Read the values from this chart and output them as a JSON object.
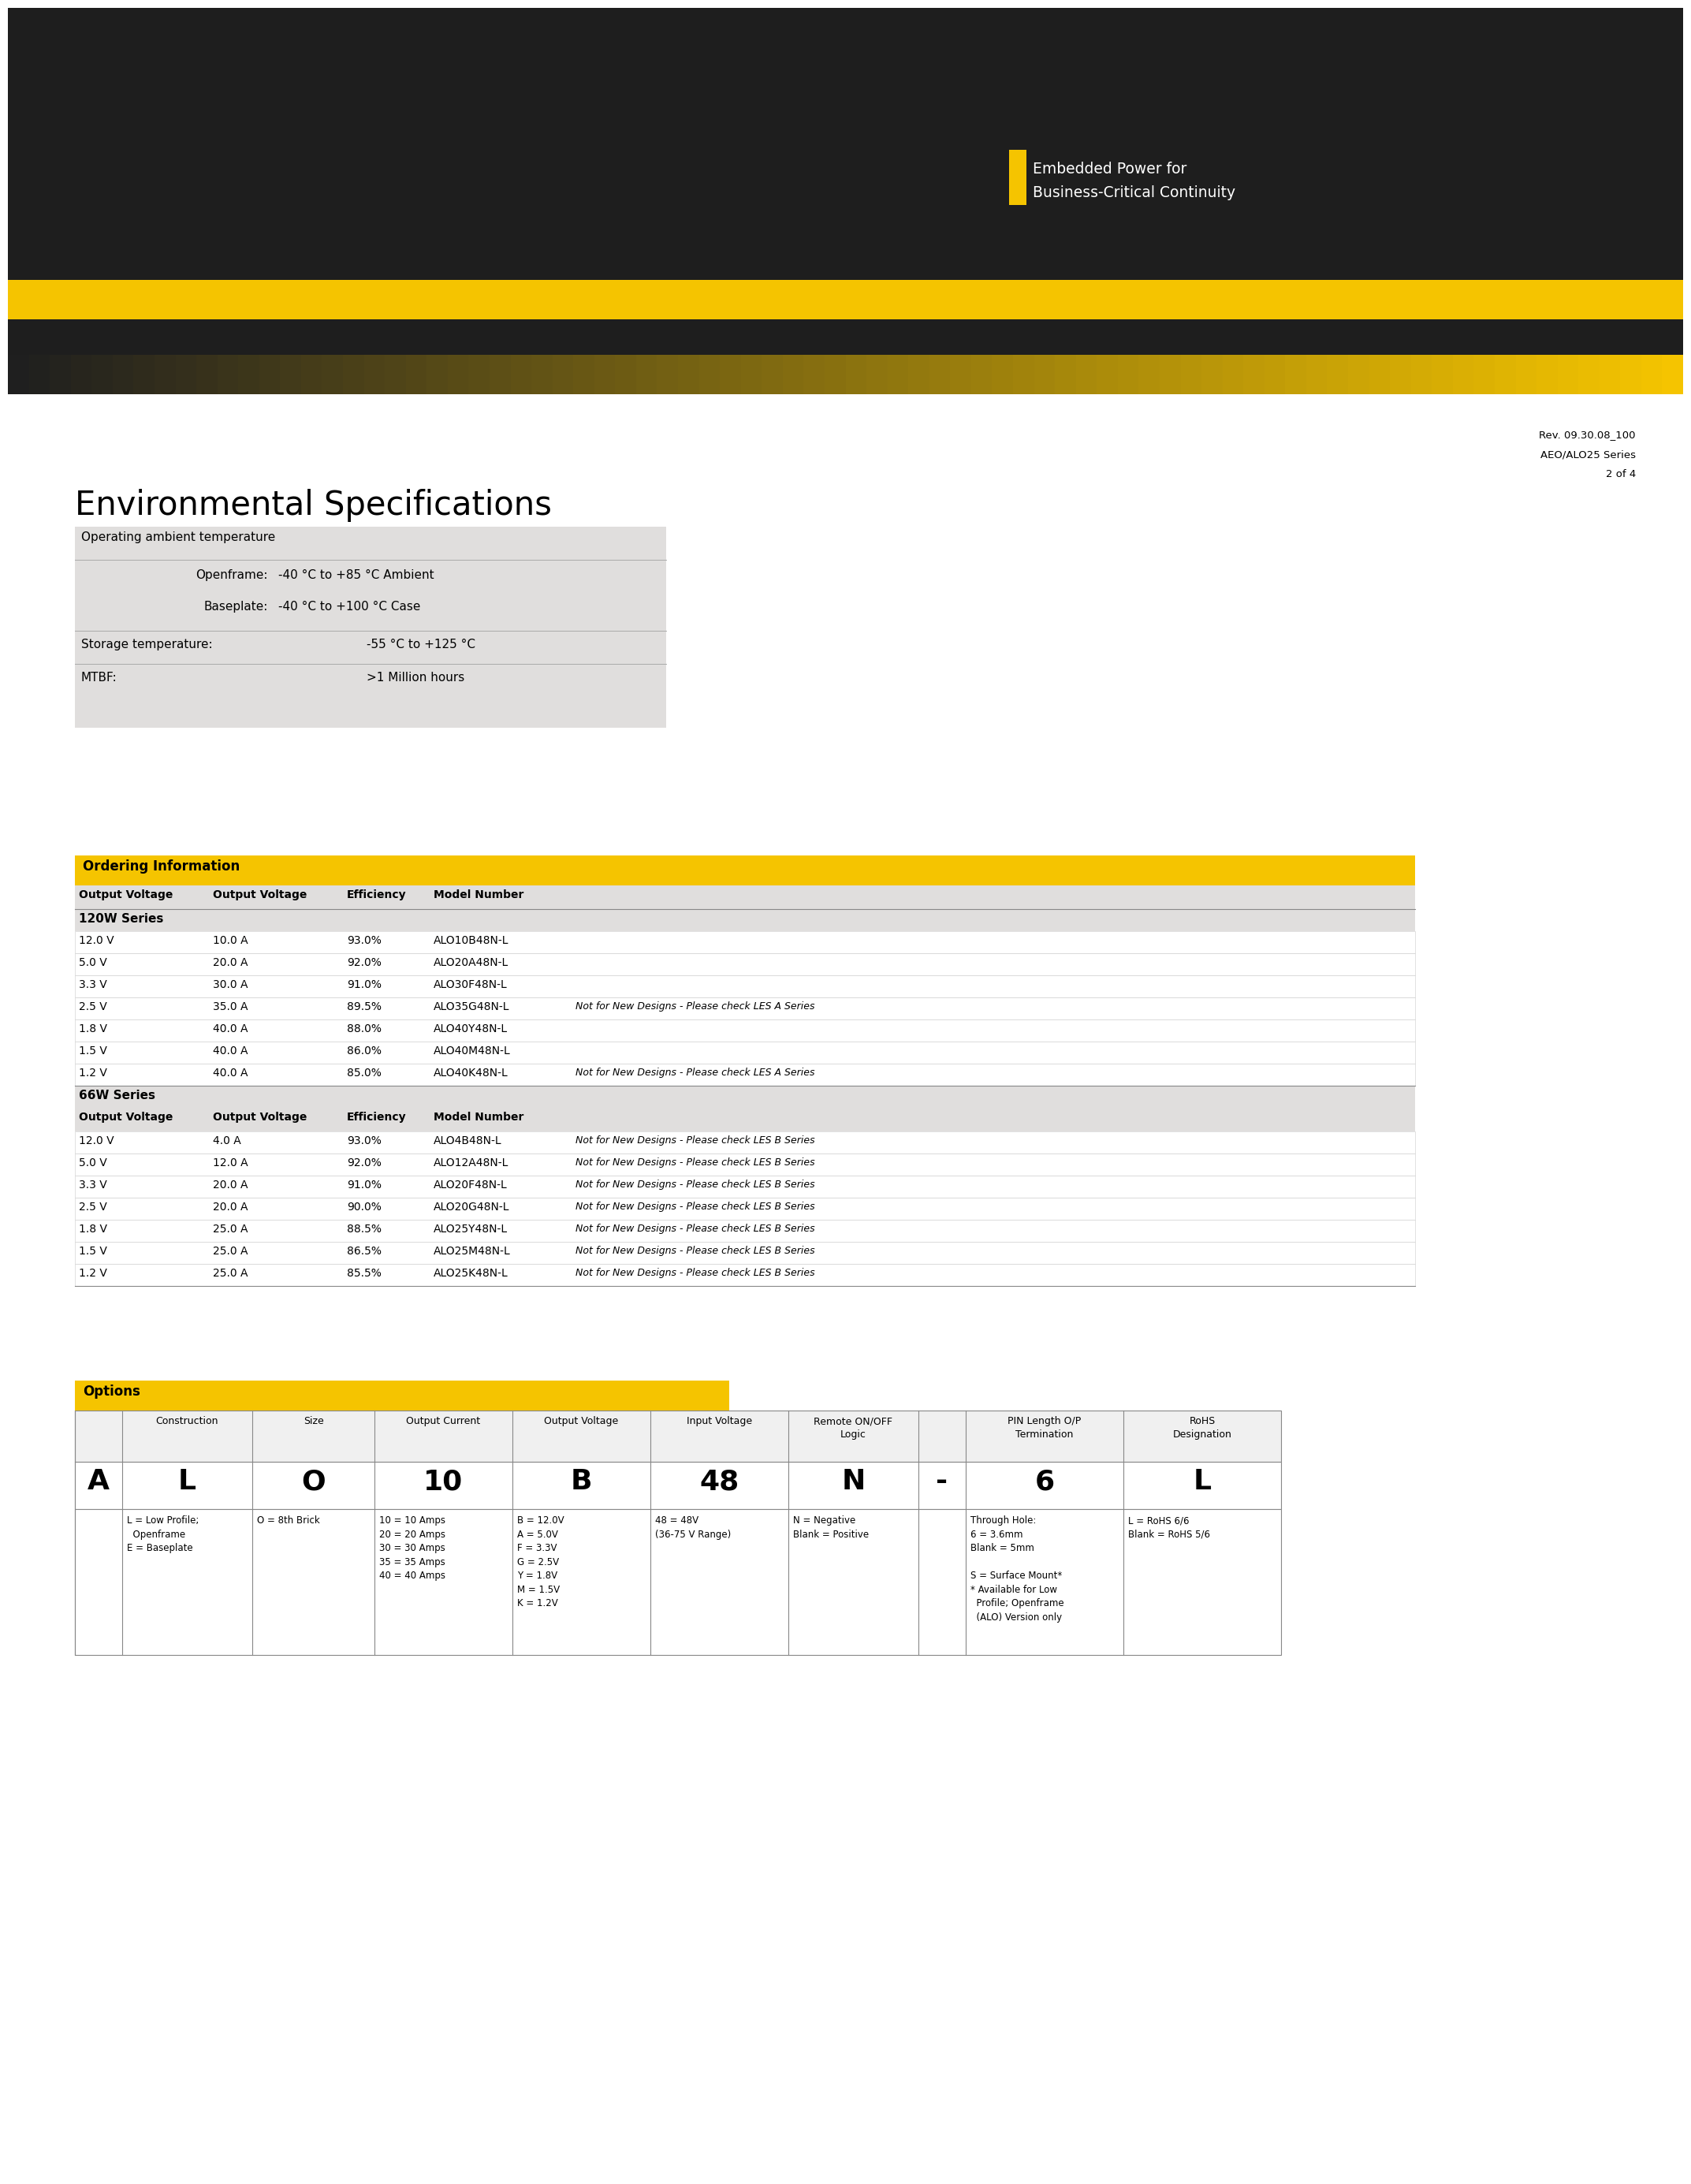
{
  "page_bg": "#ffffff",
  "dark_color": "#1e1e1e",
  "yellow_color": "#f5c400",
  "light_gray": "#e0dedd",
  "brand_text_line1": "Embedded Power for",
  "brand_text_line2": "Business-Critical Continuity",
  "rev_line1": "Rev. 09.30.08_100",
  "rev_line2": "AEO/ALO25 Series",
  "rev_line3": "2 of 4",
  "env_title": "Environmental Specifications",
  "ordering_title": "Ordering Information",
  "series_120w": "120W Series",
  "series_66w": "66W Series",
  "ordering_col_headers": [
    "Output Voltage",
    "Output Voltage",
    "Efficiency",
    "Model Number"
  ],
  "ordering_120w": [
    [
      "12.0 V",
      "10.0 A",
      "93.0%",
      "ALO10B48N-L",
      ""
    ],
    [
      "5.0 V",
      "20.0 A",
      "92.0%",
      "ALO20A48N-L",
      ""
    ],
    [
      "3.3 V",
      "30.0 A",
      "91.0%",
      "ALO30F48N-L",
      ""
    ],
    [
      "2.5 V",
      "35.0 A",
      "89.5%",
      "ALO35G48N-L",
      "Not for New Designs - Please check LES A Series"
    ],
    [
      "1.8 V",
      "40.0 A",
      "88.0%",
      "ALO40Y48N-L",
      ""
    ],
    [
      "1.5 V",
      "40.0 A",
      "86.0%",
      "ALO40M48N-L",
      ""
    ],
    [
      "1.2 V",
      "40.0 A",
      "85.0%",
      "ALO40K48N-L",
      "Not for New Designs - Please check LES A Series"
    ]
  ],
  "ordering_66w": [
    [
      "12.0 V",
      "4.0 A",
      "93.0%",
      "ALO4B48N-L",
      "Not for New Designs - Please check LES B Series"
    ],
    [
      "5.0 V",
      "12.0 A",
      "92.0%",
      "ALO12A48N-L",
      "Not for New Designs - Please check LES B Series"
    ],
    [
      "3.3 V",
      "20.0 A",
      "91.0%",
      "ALO20F48N-L",
      "Not for New Designs - Please check LES B Series"
    ],
    [
      "2.5 V",
      "20.0 A",
      "90.0%",
      "ALO20G48N-L",
      "Not for New Designs - Please check LES B Series"
    ],
    [
      "1.8 V",
      "25.0 A",
      "88.5%",
      "ALO25Y48N-L",
      "Not for New Designs - Please check LES B Series"
    ],
    [
      "1.5 V",
      "25.0 A",
      "86.5%",
      "ALO25M48N-L",
      "Not for New Designs - Please check LES B Series"
    ],
    [
      "1.2 V",
      "25.0 A",
      "85.5%",
      "ALO25K48N-L",
      "Not for New Designs - Please check LES B Series"
    ]
  ],
  "options_title": "Options",
  "opt_col_headers": [
    "Construction",
    "Size",
    "Output Current",
    "Output Voltage",
    "Input Voltage",
    "Remote ON/OFF\nLogic",
    "",
    "PIN Length O/P\nTermination",
    "RoHS\nDesignation"
  ],
  "opt_row_A": [
    "L",
    "O",
    "10",
    "B",
    "48",
    "N",
    "-",
    "6",
    "L"
  ],
  "opt_desc": [
    "L = Low Profile;\n  Openframe\nE = Baseplate",
    "O = 8th Brick",
    "10 = 10 Amps\n20 = 20 Amps\n30 = 30 Amps\n35 = 35 Amps\n40 = 40 Amps",
    "B = 12.0V\nA = 5.0V\nF = 3.3V\nG = 2.5V\nY = 1.8V\nM = 1.5V\nK = 1.2V",
    "48 = 48V\n(36-75 V Range)",
    "N = Negative\nBlank = Positive",
    "",
    "Through Hole:\n6 = 3.6mm\nBlank = 5mm\n\nS = Surface Mount*\n* Available for Low\n  Profile; Openframe\n  (ALO) Version only",
    "L = RoHS 6/6\nBlank = RoHS 5/6"
  ]
}
